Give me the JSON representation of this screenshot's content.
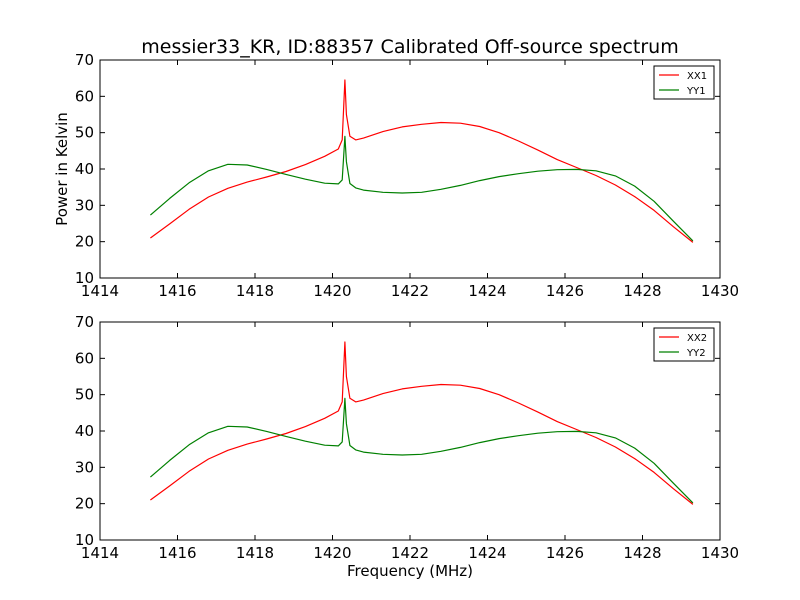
{
  "title": "messier33_KR, ID:88357 Calibrated Off-source spectrum",
  "chart_data": [
    {
      "type": "line",
      "ylabel": "Power in Kelvin",
      "xlabel": "",
      "xlim": [
        1414,
        1430
      ],
      "ylim": [
        10,
        70
      ],
      "xticks": [
        "1414",
        "1416",
        "1418",
        "1420",
        "1422",
        "1424",
        "1426",
        "1428",
        "1430"
      ],
      "yticks": [
        "10",
        "20",
        "30",
        "40",
        "50",
        "60",
        "70"
      ],
      "legend_position": "top-right",
      "x": [
        1415.3,
        1415.8,
        1416.3,
        1416.8,
        1417.3,
        1417.8,
        1418.3,
        1418.8,
        1419.3,
        1419.8,
        1420.15,
        1420.25,
        1420.32,
        1420.36,
        1420.45,
        1420.6,
        1420.8,
        1421.3,
        1421.8,
        1422.3,
        1422.8,
        1423.3,
        1423.8,
        1424.3,
        1424.8,
        1425.3,
        1425.8,
        1426.3,
        1426.8,
        1427.3,
        1427.8,
        1428.3,
        1428.8,
        1429.3
      ],
      "series": [
        {
          "name": "XX1",
          "color": "#ff0000",
          "values": [
            21.0,
            24.9,
            28.9,
            32.3,
            34.7,
            36.4,
            37.8,
            39.3,
            41.2,
            43.5,
            45.5,
            48.0,
            64.5,
            55.0,
            49.0,
            48.0,
            48.5,
            50.3,
            51.6,
            52.3,
            52.8,
            52.6,
            51.7,
            50.0,
            47.7,
            45.2,
            42.6,
            40.4,
            38.2,
            35.6,
            32.4,
            28.6,
            24.1,
            19.8
          ]
        },
        {
          "name": "YY1",
          "color": "#008000",
          "values": [
            27.3,
            31.9,
            36.2,
            39.5,
            41.3,
            41.1,
            39.9,
            38.5,
            37.2,
            36.1,
            35.9,
            37.0,
            49.0,
            42.0,
            36.0,
            34.8,
            34.2,
            33.6,
            33.4,
            33.6,
            34.4,
            35.5,
            36.8,
            37.9,
            38.7,
            39.4,
            39.8,
            39.9,
            39.5,
            38.1,
            35.3,
            31.1,
            25.6,
            20.2
          ]
        }
      ]
    },
    {
      "type": "line",
      "ylabel": "",
      "xlabel": "Frequency (MHz)",
      "xlim": [
        1414,
        1430
      ],
      "ylim": [
        10,
        70
      ],
      "xticks": [
        "1414",
        "1416",
        "1418",
        "1420",
        "1422",
        "1424",
        "1426",
        "1428",
        "1430"
      ],
      "yticks": [
        "10",
        "20",
        "30",
        "40",
        "50",
        "60",
        "70"
      ],
      "legend_position": "top-right",
      "x": [
        1415.3,
        1415.8,
        1416.3,
        1416.8,
        1417.3,
        1417.8,
        1418.3,
        1418.8,
        1419.3,
        1419.8,
        1420.15,
        1420.25,
        1420.32,
        1420.36,
        1420.45,
        1420.6,
        1420.8,
        1421.3,
        1421.8,
        1422.3,
        1422.8,
        1423.3,
        1423.8,
        1424.3,
        1424.8,
        1425.3,
        1425.8,
        1426.3,
        1426.8,
        1427.3,
        1427.8,
        1428.3,
        1428.8,
        1429.3
      ],
      "series": [
        {
          "name": "XX2",
          "color": "#ff0000",
          "values": [
            21.0,
            24.9,
            28.9,
            32.3,
            34.7,
            36.4,
            37.8,
            39.3,
            41.2,
            43.5,
            45.5,
            48.0,
            64.5,
            55.0,
            49.0,
            48.0,
            48.5,
            50.3,
            51.6,
            52.3,
            52.8,
            52.6,
            51.7,
            50.0,
            47.7,
            45.2,
            42.6,
            40.4,
            38.2,
            35.6,
            32.4,
            28.6,
            24.1,
            19.8
          ]
        },
        {
          "name": "YY2",
          "color": "#008000",
          "values": [
            27.3,
            31.9,
            36.2,
            39.5,
            41.3,
            41.1,
            39.9,
            38.5,
            37.2,
            36.1,
            35.9,
            37.0,
            49.0,
            42.0,
            36.0,
            34.8,
            34.2,
            33.6,
            33.4,
            33.6,
            34.4,
            35.5,
            36.8,
            37.9,
            38.7,
            39.4,
            39.8,
            39.9,
            39.5,
            38.1,
            35.3,
            31.1,
            25.6,
            20.2
          ]
        }
      ]
    }
  ]
}
